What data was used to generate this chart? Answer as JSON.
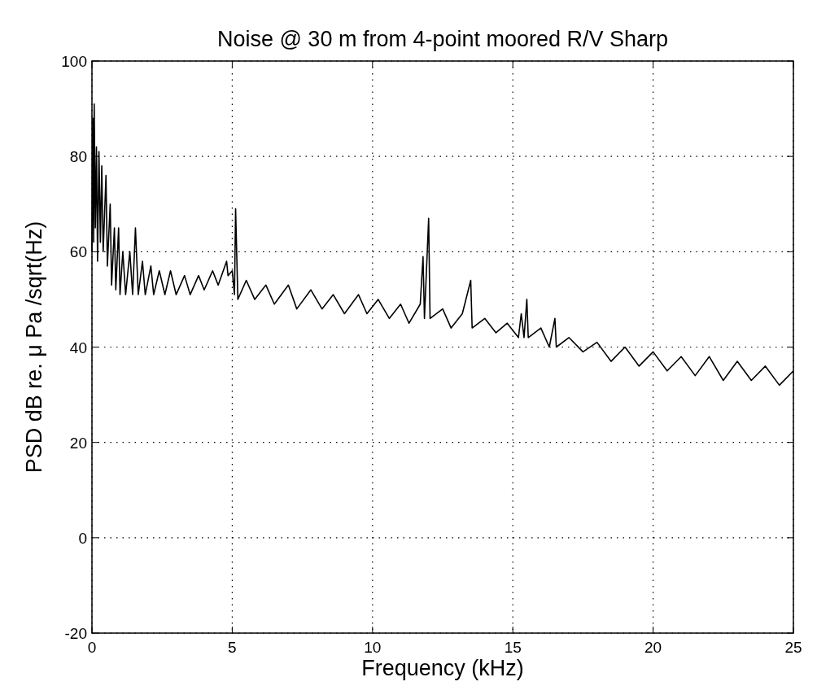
{
  "chart_data": {
    "type": "line",
    "title": "Noise @ 30 m from 4-point moored R/V Sharp",
    "xlabel": "Frequency (kHz)",
    "ylabel": "PSD dB re. μ Pa /sqrt(Hz)",
    "xlim": [
      0,
      25
    ],
    "ylim": [
      -20,
      100
    ],
    "xticks": [
      0,
      5,
      10,
      15,
      20,
      25
    ],
    "yticks": [
      -20,
      0,
      20,
      40,
      60,
      80,
      100
    ],
    "grid": true,
    "line_style": "solid",
    "series": [
      {
        "color": "#000000",
        "x": [
          0,
          0.03,
          0.06,
          0.08,
          0.12,
          0.16,
          0.2,
          0.25,
          0.3,
          0.35,
          0.4,
          0.5,
          0.55,
          0.65,
          0.7,
          0.8,
          0.85,
          0.95,
          1.0,
          1.1,
          1.2,
          1.35,
          1.45,
          1.55,
          1.65,
          1.8,
          1.9,
          2.1,
          2.2,
          2.4,
          2.6,
          2.8,
          3.0,
          3.3,
          3.5,
          3.8,
          4.0,
          4.3,
          4.5,
          4.8,
          4.85,
          5.0,
          5.08,
          5.12,
          5.2,
          5.5,
          5.8,
          6.2,
          6.5,
          7.0,
          7.3,
          7.8,
          8.2,
          8.6,
          9.0,
          9.5,
          9.8,
          10.2,
          10.6,
          11.0,
          11.3,
          11.7,
          11.8,
          11.85,
          12.0,
          12.05,
          12.5,
          12.8,
          13.2,
          13.5,
          13.55,
          14.0,
          14.4,
          14.8,
          15.2,
          15.3,
          15.4,
          15.5,
          15.55,
          16.0,
          16.3,
          16.5,
          16.55,
          17.0,
          17.5,
          18.0,
          18.5,
          19.0,
          19.5,
          20.0,
          20.5,
          21.0,
          21.5,
          22.0,
          22.5,
          23.0,
          23.5,
          24.0,
          24.5,
          25.0
        ],
        "values": [
          60,
          88,
          62,
          91,
          65,
          82,
          58,
          81,
          62,
          78,
          60,
          76,
          57,
          70,
          53,
          65,
          52,
          65,
          51,
          60,
          51,
          60,
          51,
          65,
          51,
          58,
          51,
          57,
          51,
          56,
          51,
          56,
          51,
          55,
          51,
          55,
          52,
          56,
          53,
          58,
          55,
          56,
          51,
          69,
          50,
          54,
          50,
          53,
          49,
          53,
          48,
          52,
          48,
          51,
          47,
          51,
          47,
          50,
          46,
          49,
          45,
          49,
          59,
          46,
          67,
          46,
          48,
          44,
          47,
          54,
          44,
          46,
          43,
          45,
          42,
          47,
          42,
          50,
          42,
          44,
          40,
          46,
          40,
          42,
          39,
          41,
          37,
          40,
          36,
          39,
          35,
          38,
          34,
          38,
          33,
          37,
          33,
          36,
          32,
          35
        ]
      }
    ]
  }
}
